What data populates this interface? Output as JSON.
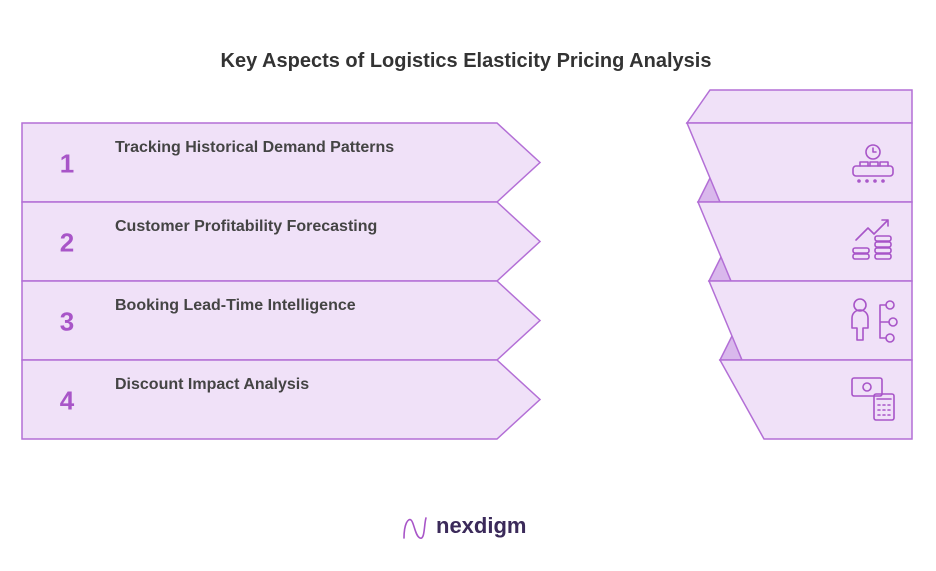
{
  "title": "Key Aspects of Logistics Elasticity Pricing Analysis",
  "items": [
    {
      "number": "1",
      "label": "Tracking Historical Demand Patterns"
    },
    {
      "number": "2",
      "label": "Customer Profitability Forecasting"
    },
    {
      "number": "3",
      "label": "Booking Lead-Time Intelligence"
    },
    {
      "number": "4",
      "label": "Discount Impact Analysis"
    }
  ],
  "logo": "nexdigm"
}
